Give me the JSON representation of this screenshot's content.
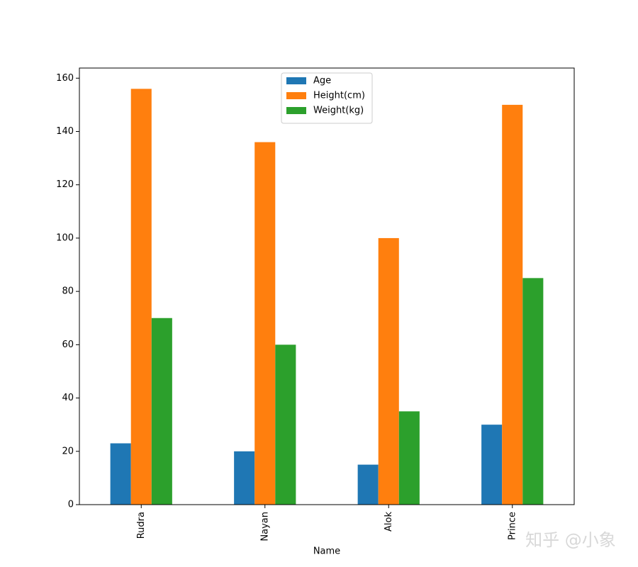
{
  "chart_data": {
    "type": "bar",
    "x_label": "Name",
    "categories": [
      "Rudra",
      "Nayan",
      "Alok",
      "Prince"
    ],
    "series": [
      {
        "name": "Age",
        "color": "#1f77b4",
        "values": [
          23,
          20,
          15,
          30
        ]
      },
      {
        "name": "Height(cm)",
        "color": "#ff7f0e",
        "values": [
          156,
          136,
          100,
          150
        ]
      },
      {
        "name": "Weight(kg)",
        "color": "#2ca02c",
        "values": [
          70,
          60,
          35,
          85
        ]
      }
    ],
    "ylim": [
      0,
      163.8
    ],
    "yticks": [
      0,
      20,
      40,
      60,
      80,
      100,
      120,
      140,
      160
    ],
    "legend": "upper center",
    "watermark": "知乎 @小象"
  }
}
